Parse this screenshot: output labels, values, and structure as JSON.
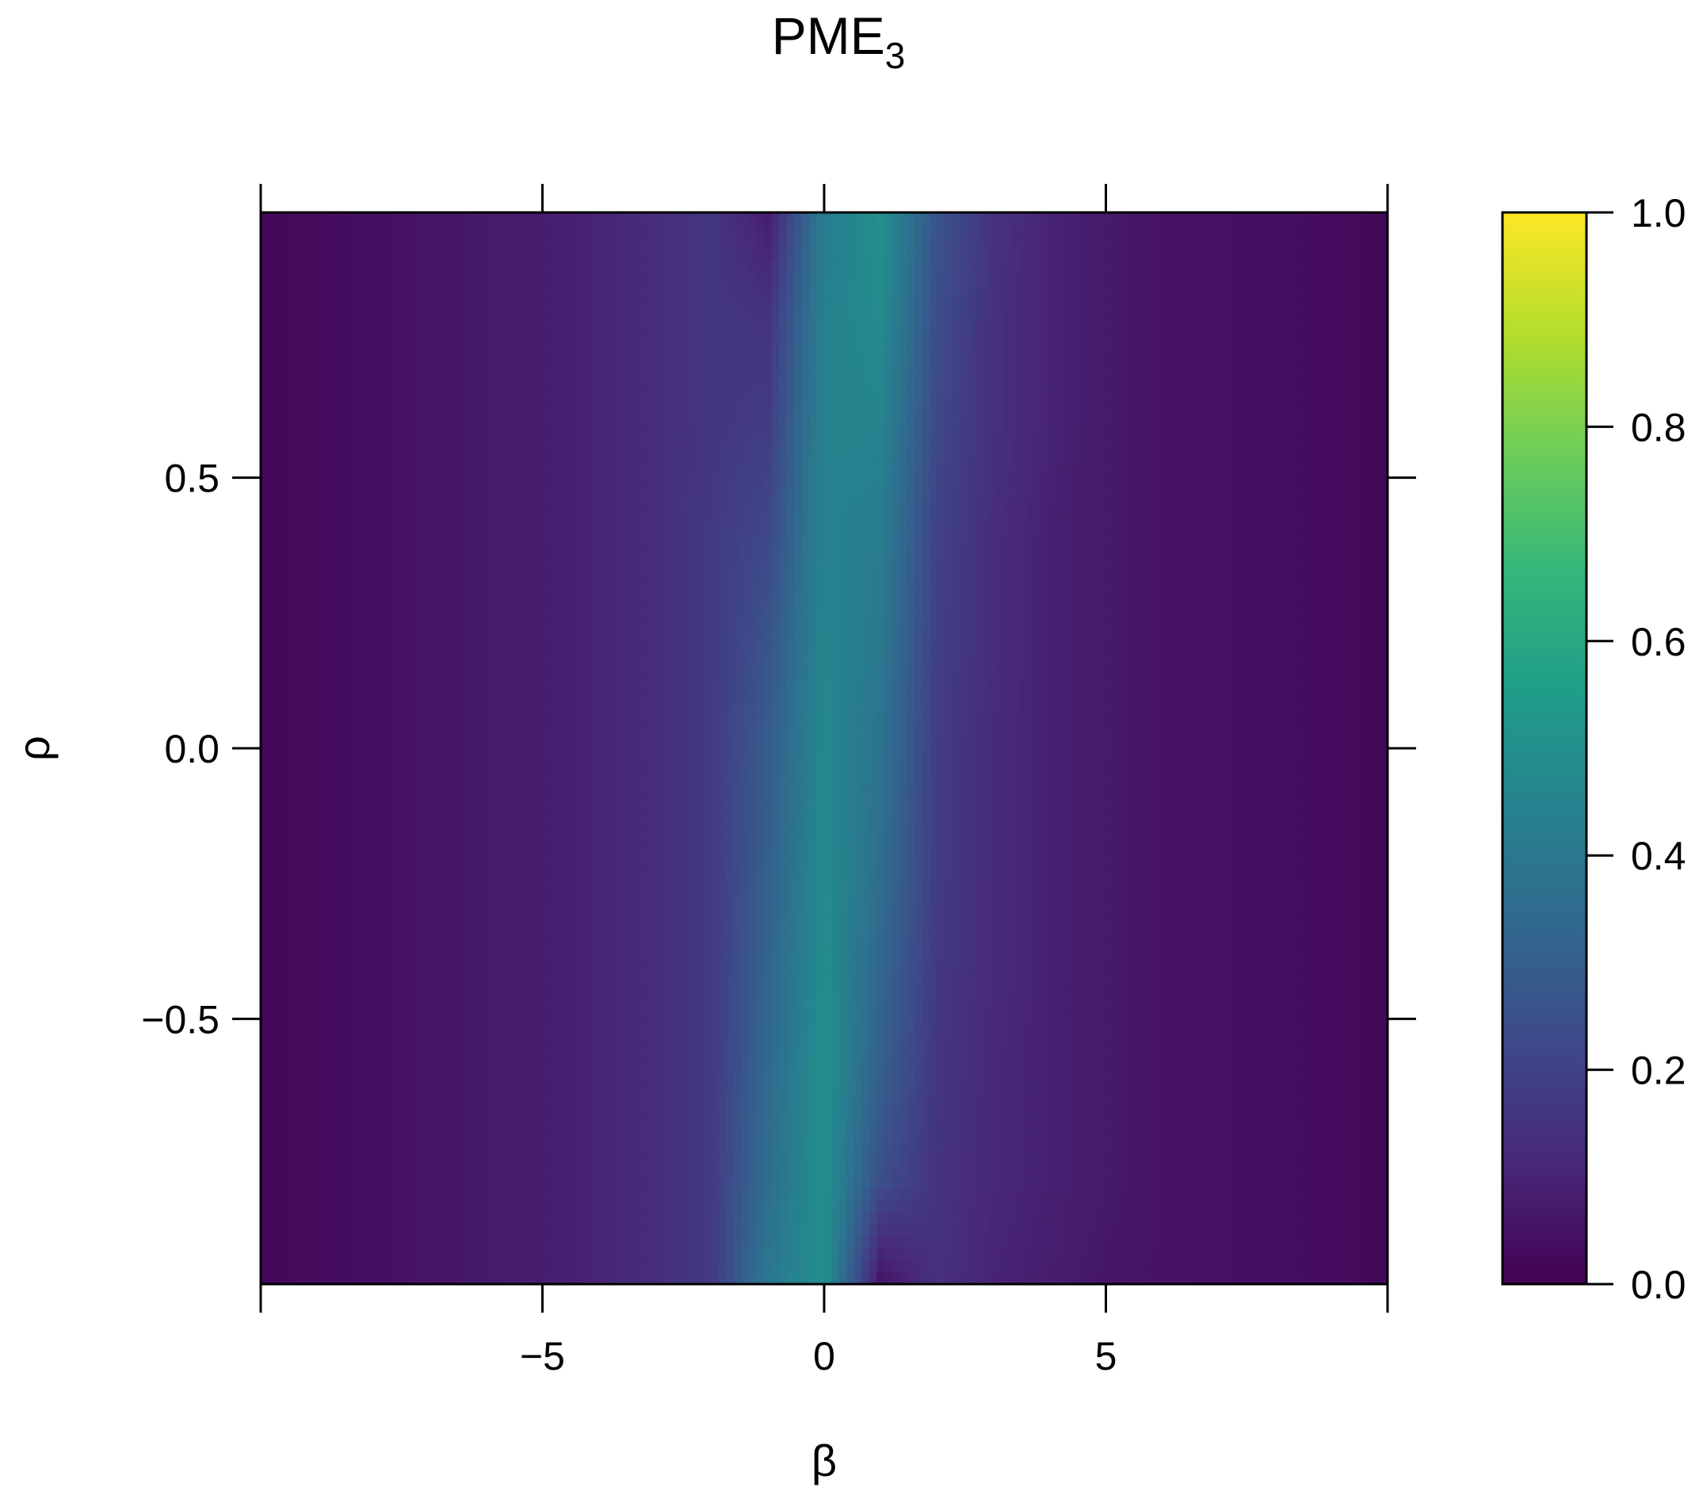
{
  "chart_data": {
    "type": "heatmap",
    "title": "PME",
    "title_subscript": "3",
    "xlabel": "β",
    "ylabel": "ρ",
    "xlim": [
      -10,
      10
    ],
    "ylim": [
      -0.99,
      0.99
    ],
    "x_ticks": [
      -10,
      -5,
      0,
      5,
      10
    ],
    "x_tick_labels": [
      "",
      "−5",
      "0",
      "5",
      ""
    ],
    "y_ticks": [
      -0.5,
      0.0,
      0.5
    ],
    "y_tick_labels": [
      "−0.5",
      "0.0",
      "0.5"
    ],
    "colorbar": {
      "min": 0.0,
      "max": 1.0,
      "ticks": [
        0.0,
        0.2,
        0.4,
        0.6,
        0.8,
        1.0
      ],
      "tick_labels": [
        "0.0",
        "0.2",
        "0.4",
        "0.6",
        "0.8",
        "1.0"
      ],
      "colormap": "viridis",
      "stops": [
        "#440154",
        "#482878",
        "#3e4989",
        "#31688e",
        "#26828e",
        "#1f9e89",
        "#35b779",
        "#6ece58",
        "#b5de2b",
        "#fde725"
      ]
    },
    "grid": false,
    "rho": [
      -0.99,
      -0.8,
      -0.6,
      -0.4,
      -0.2,
      0.0,
      0.2,
      0.4,
      0.6,
      0.8,
      0.99
    ],
    "beta": [
      -10,
      -8,
      -6,
      -5,
      -4,
      -3,
      -2,
      -1,
      0,
      1,
      2,
      3,
      4,
      5,
      6,
      8,
      10
    ],
    "values": [
      [
        0.02,
        0.04,
        0.07,
        0.08,
        0.1,
        0.13,
        0.17,
        0.4,
        0.5,
        0.05,
        0.14,
        0.1,
        0.08,
        0.06,
        0.05,
        0.04,
        0.02
      ],
      [
        0.02,
        0.04,
        0.07,
        0.08,
        0.1,
        0.13,
        0.17,
        0.36,
        0.5,
        0.24,
        0.15,
        0.11,
        0.09,
        0.07,
        0.05,
        0.04,
        0.02
      ],
      [
        0.02,
        0.04,
        0.07,
        0.08,
        0.1,
        0.13,
        0.17,
        0.34,
        0.5,
        0.3,
        0.16,
        0.11,
        0.09,
        0.07,
        0.05,
        0.04,
        0.02
      ],
      [
        0.02,
        0.04,
        0.07,
        0.08,
        0.1,
        0.13,
        0.17,
        0.32,
        0.49,
        0.33,
        0.17,
        0.12,
        0.09,
        0.07,
        0.05,
        0.04,
        0.02
      ],
      [
        0.02,
        0.04,
        0.07,
        0.08,
        0.1,
        0.13,
        0.17,
        0.3,
        0.48,
        0.36,
        0.18,
        0.12,
        0.09,
        0.07,
        0.05,
        0.04,
        0.02
      ],
      [
        0.02,
        0.04,
        0.07,
        0.08,
        0.1,
        0.13,
        0.17,
        0.29,
        0.47,
        0.38,
        0.18,
        0.12,
        0.09,
        0.07,
        0.05,
        0.04,
        0.02
      ],
      [
        0.02,
        0.04,
        0.07,
        0.08,
        0.1,
        0.13,
        0.17,
        0.26,
        0.46,
        0.4,
        0.19,
        0.13,
        0.09,
        0.07,
        0.05,
        0.04,
        0.02
      ],
      [
        0.02,
        0.04,
        0.07,
        0.08,
        0.1,
        0.13,
        0.17,
        0.22,
        0.45,
        0.42,
        0.2,
        0.13,
        0.09,
        0.07,
        0.05,
        0.04,
        0.02
      ],
      [
        0.02,
        0.04,
        0.07,
        0.08,
        0.1,
        0.13,
        0.16,
        0.18,
        0.45,
        0.45,
        0.22,
        0.14,
        0.1,
        0.07,
        0.05,
        0.04,
        0.02
      ],
      [
        0.02,
        0.04,
        0.07,
        0.08,
        0.1,
        0.13,
        0.16,
        0.15,
        0.44,
        0.48,
        0.24,
        0.14,
        0.1,
        0.07,
        0.05,
        0.04,
        0.02
      ],
      [
        0.02,
        0.04,
        0.07,
        0.08,
        0.1,
        0.13,
        0.16,
        0.08,
        0.42,
        0.5,
        0.26,
        0.15,
        0.1,
        0.07,
        0.05,
        0.04,
        0.02
      ]
    ]
  }
}
